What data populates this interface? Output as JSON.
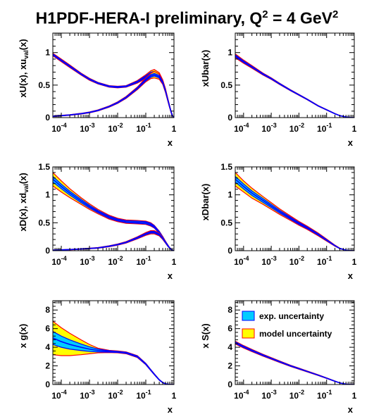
{
  "title": {
    "prefix": "H1PDF-HERA-I preliminary, Q",
    "sup1": "2",
    "mid": " = 4 GeV",
    "sup2": "2"
  },
  "colors": {
    "exp_band": "#00ccff",
    "model_band": "#ffff00",
    "band_edge_model": "#ff0000",
    "band_edge_exp": "#0000ff",
    "central": "#0000ff"
  },
  "legend": {
    "exp": "exp. uncertainty",
    "model": "model uncertainty"
  },
  "chart_data": [
    {
      "type": "line",
      "id": "xU",
      "ylabel": "xU(x), xu_val(x)",
      "xlabel": "x",
      "xscale": "log",
      "xlim": [
        5e-05,
        1
      ],
      "ylim": [
        0,
        1.3
      ],
      "yticks": [
        0,
        0.5,
        1
      ],
      "series": [
        {
          "x": [
            5e-05,
            0.0001,
            0.0002,
            0.0005,
            0.001,
            0.002,
            0.005,
            0.01,
            0.02,
            0.05,
            0.1,
            0.15,
            0.2,
            0.3,
            0.4,
            0.5,
            0.6,
            0.7,
            0.8,
            0.9,
            1
          ],
          "y": [
            0.97,
            0.88,
            0.79,
            0.67,
            0.59,
            0.53,
            0.48,
            0.47,
            0.48,
            0.55,
            0.63,
            0.68,
            0.69,
            0.65,
            0.55,
            0.42,
            0.28,
            0.17,
            0.08,
            0.02,
            0
          ],
          "model": [
            0.02,
            0.02,
            0.02,
            0.015,
            0.015,
            0.012,
            0.012,
            0.012,
            0.012,
            0.02,
            0.03,
            0.04,
            0.05,
            0.04,
            0.03,
            0.025,
            0.02,
            0.015,
            0.01,
            0.005,
            0
          ],
          "exp": [
            0.01,
            0.01,
            0.01,
            0.008,
            0.008,
            0.008,
            0.008,
            0.008,
            0.008,
            0.01,
            0.015,
            0.02,
            0.02,
            0.02,
            0.015,
            0.012,
            0.01,
            0.008,
            0.005,
            0.003,
            0
          ]
        },
        {
          "x": [
            5e-05,
            0.0001,
            0.0002,
            0.0005,
            0.001,
            0.002,
            0.005,
            0.01,
            0.02,
            0.05,
            0.1,
            0.15,
            0.2,
            0.3,
            0.4,
            0.5,
            0.6,
            0.7,
            0.8,
            0.9,
            1
          ],
          "y": [
            0.02,
            0.03,
            0.04,
            0.06,
            0.08,
            0.11,
            0.17,
            0.23,
            0.31,
            0.45,
            0.58,
            0.64,
            0.66,
            0.63,
            0.54,
            0.41,
            0.28,
            0.17,
            0.08,
            0.02,
            0
          ],
          "model": [
            0.005,
            0.005,
            0.005,
            0.006,
            0.007,
            0.008,
            0.01,
            0.012,
            0.015,
            0.02,
            0.03,
            0.04,
            0.05,
            0.04,
            0.03,
            0.025,
            0.02,
            0.015,
            0.01,
            0.005,
            0
          ],
          "exp": [
            0.003,
            0.003,
            0.003,
            0.004,
            0.004,
            0.005,
            0.006,
            0.007,
            0.008,
            0.01,
            0.015,
            0.02,
            0.02,
            0.02,
            0.015,
            0.012,
            0.01,
            0.008,
            0.005,
            0.003,
            0
          ]
        }
      ]
    },
    {
      "type": "line",
      "id": "xUbar",
      "ylabel": "xUbar(x)",
      "xlabel": "x",
      "xscale": "log",
      "xlim": [
        5e-05,
        1
      ],
      "ylim": [
        0,
        1.3
      ],
      "yticks": [
        0,
        0.5,
        1
      ],
      "series": [
        {
          "x": [
            5e-05,
            0.0001,
            0.0002,
            0.0005,
            0.001,
            0.002,
            0.005,
            0.01,
            0.02,
            0.05,
            0.1,
            0.2,
            0.3,
            0.5,
            0.7,
            1
          ],
          "y": [
            0.95,
            0.86,
            0.78,
            0.67,
            0.6,
            0.52,
            0.42,
            0.35,
            0.28,
            0.18,
            0.12,
            0.06,
            0.03,
            0.01,
            0.003,
            0
          ],
          "model": [
            0.03,
            0.025,
            0.02,
            0.015,
            0.012,
            0.01,
            0.008,
            0.007,
            0.006,
            0.005,
            0.004,
            0.003,
            0.002,
            0.001,
            0.001,
            0
          ],
          "exp": [
            0.015,
            0.012,
            0.01,
            0.008,
            0.007,
            0.006,
            0.005,
            0.004,
            0.004,
            0.003,
            0.003,
            0.002,
            0.001,
            0.001,
            0,
            0
          ]
        }
      ]
    },
    {
      "type": "line",
      "id": "xD",
      "ylabel": "xD(x), xd_val(x)",
      "xlabel": "x",
      "xscale": "log",
      "xlim": [
        5e-05,
        1
      ],
      "ylim": [
        0,
        1.5
      ],
      "yticks": [
        0,
        0.5,
        1,
        1.5
      ],
      "series": [
        {
          "x": [
            5e-05,
            0.0001,
            0.0002,
            0.0005,
            0.001,
            0.002,
            0.005,
            0.01,
            0.02,
            0.05,
            0.1,
            0.15,
            0.2,
            0.3,
            0.4,
            0.5,
            0.6,
            0.7,
            0.8,
            0.9,
            1
          ],
          "y": [
            1.28,
            1.15,
            1.03,
            0.89,
            0.79,
            0.7,
            0.6,
            0.55,
            0.52,
            0.51,
            0.5,
            0.47,
            0.43,
            0.33,
            0.24,
            0.16,
            0.1,
            0.05,
            0.02,
            0.005,
            0
          ],
          "model": [
            0.12,
            0.1,
            0.08,
            0.06,
            0.05,
            0.04,
            0.035,
            0.03,
            0.03,
            0.03,
            0.03,
            0.03,
            0.025,
            0.02,
            0.015,
            0.01,
            0.008,
            0.005,
            0.003,
            0.001,
            0
          ],
          "exp": [
            0.05,
            0.04,
            0.035,
            0.03,
            0.025,
            0.02,
            0.02,
            0.018,
            0.018,
            0.02,
            0.02,
            0.02,
            0.018,
            0.015,
            0.01,
            0.008,
            0.006,
            0.004,
            0.002,
            0.001,
            0
          ]
        },
        {
          "x": [
            5e-05,
            0.0001,
            0.0002,
            0.0005,
            0.001,
            0.002,
            0.005,
            0.01,
            0.02,
            0.05,
            0.1,
            0.15,
            0.2,
            0.3,
            0.4,
            0.5,
            0.6,
            0.7,
            0.8,
            0.9,
            1
          ],
          "y": [
            0.01,
            0.015,
            0.02,
            0.03,
            0.04,
            0.05,
            0.08,
            0.11,
            0.15,
            0.23,
            0.3,
            0.33,
            0.33,
            0.29,
            0.22,
            0.15,
            0.09,
            0.05,
            0.02,
            0.005,
            0
          ],
          "model": [
            0.003,
            0.003,
            0.004,
            0.005,
            0.006,
            0.007,
            0.009,
            0.011,
            0.013,
            0.018,
            0.025,
            0.03,
            0.03,
            0.025,
            0.02,
            0.015,
            0.01,
            0.006,
            0.003,
            0.001,
            0
          ],
          "exp": [
            0.002,
            0.002,
            0.002,
            0.003,
            0.003,
            0.004,
            0.005,
            0.006,
            0.007,
            0.01,
            0.012,
            0.015,
            0.015,
            0.013,
            0.01,
            0.008,
            0.006,
            0.004,
            0.002,
            0.001,
            0
          ]
        }
      ]
    },
    {
      "type": "line",
      "id": "xDbar",
      "ylabel": "xDbar(x)",
      "xlabel": "x",
      "xscale": "log",
      "xlim": [
        5e-05,
        1
      ],
      "ylim": [
        0,
        1.5
      ],
      "yticks": [
        0,
        0.5,
        1,
        1.5
      ],
      "series": [
        {
          "x": [
            5e-05,
            0.0001,
            0.0002,
            0.0005,
            0.001,
            0.002,
            0.005,
            0.01,
            0.02,
            0.05,
            0.1,
            0.2,
            0.3,
            0.5,
            0.7,
            1
          ],
          "y": [
            1.28,
            1.15,
            1.03,
            0.9,
            0.8,
            0.7,
            0.58,
            0.49,
            0.41,
            0.29,
            0.19,
            0.09,
            0.04,
            0.01,
            0.003,
            0
          ],
          "model": [
            0.12,
            0.1,
            0.09,
            0.07,
            0.06,
            0.05,
            0.04,
            0.035,
            0.03,
            0.025,
            0.018,
            0.01,
            0.005,
            0.002,
            0.001,
            0
          ],
          "exp": [
            0.05,
            0.045,
            0.04,
            0.035,
            0.03,
            0.025,
            0.02,
            0.018,
            0.015,
            0.012,
            0.009,
            0.005,
            0.003,
            0.001,
            0,
            0
          ]
        }
      ]
    },
    {
      "type": "area",
      "id": "xg",
      "ylabel": "x g(x)",
      "xlabel": "x",
      "xscale": "log",
      "xlim": [
        5e-05,
        1
      ],
      "ylim": [
        0,
        9
      ],
      "yticks": [
        0,
        2,
        4,
        6,
        8
      ],
      "series": [
        {
          "x": [
            5e-05,
            0.0001,
            0.0002,
            0.0005,
            0.001,
            0.002,
            0.005,
            0.01,
            0.02,
            0.05,
            0.1,
            0.15,
            0.2,
            0.3,
            0.4,
            0.5,
            0.7,
            1
          ],
          "y": [
            5.0,
            4.6,
            4.3,
            4.0,
            3.8,
            3.65,
            3.55,
            3.5,
            3.4,
            3.0,
            2.2,
            1.55,
            1.1,
            0.5,
            0.2,
            0.08,
            0.01,
            0
          ],
          "model": [
            1.8,
            1.5,
            1.2,
            0.8,
            0.5,
            0.25,
            0.12,
            0.1,
            0.1,
            0.1,
            0.08,
            0.06,
            0.05,
            0.03,
            0.02,
            0.01,
            0.005,
            0
          ],
          "exp": [
            0.7,
            0.6,
            0.5,
            0.35,
            0.25,
            0.15,
            0.08,
            0.06,
            0.06,
            0.06,
            0.06,
            0.05,
            0.04,
            0.03,
            0.02,
            0.01,
            0.005,
            0
          ]
        }
      ]
    },
    {
      "type": "line",
      "id": "xS",
      "ylabel": "x S(x)",
      "xlabel": "x",
      "xscale": "log",
      "xlim": [
        5e-05,
        1
      ],
      "ylim": [
        0,
        9
      ],
      "yticks": [
        0,
        2,
        4,
        6,
        8
      ],
      "series": [
        {
          "x": [
            5e-05,
            0.0001,
            0.0002,
            0.0005,
            0.001,
            0.002,
            0.005,
            0.01,
            0.02,
            0.05,
            0.1,
            0.2,
            0.3,
            0.5,
            0.7,
            1
          ],
          "y": [
            4.5,
            4.05,
            3.65,
            3.15,
            2.8,
            2.45,
            2.0,
            1.7,
            1.4,
            1.0,
            0.68,
            0.35,
            0.17,
            0.04,
            0.01,
            0
          ],
          "model": [
            0.15,
            0.13,
            0.12,
            0.1,
            0.09,
            0.08,
            0.07,
            0.06,
            0.05,
            0.04,
            0.03,
            0.02,
            0.01,
            0.005,
            0.002,
            0
          ],
          "exp": [
            0.08,
            0.07,
            0.06,
            0.05,
            0.045,
            0.04,
            0.035,
            0.03,
            0.025,
            0.02,
            0.015,
            0.01,
            0.005,
            0.002,
            0.001,
            0
          ]
        }
      ]
    }
  ]
}
